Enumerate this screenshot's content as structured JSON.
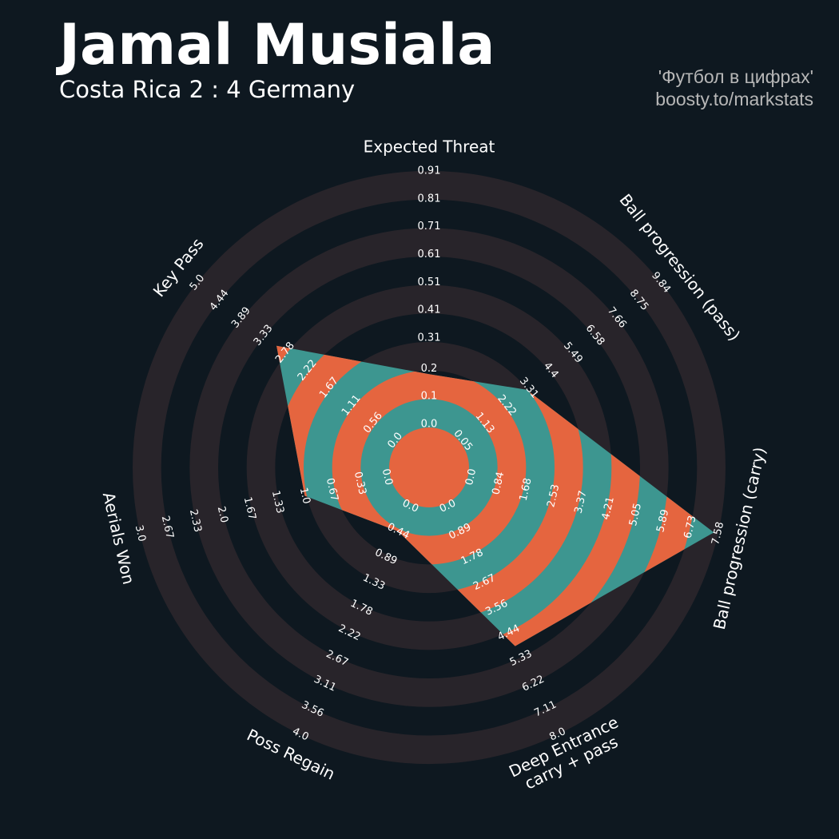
{
  "chart_data": {
    "type": "radar",
    "title": "Jamal Musiala",
    "subtitle": "Costa Rica 2 : 4 Germany",
    "credits": [
      "'Футбол в цифрах'",
      "boosty.to/markstats"
    ],
    "parameters": [
      "Expected Threat",
      "Ball progression (pass)",
      "Ball progression (carry)",
      "Deep Entrance\ncarry + pass",
      "Poss Regain",
      "Aerials Won",
      "Key Pass"
    ],
    "values": [
      0.18,
      3.2,
      7.45,
      4.9,
      0.44,
      1.0,
      3.0
    ],
    "ranges": [
      [
        0,
        0.91
      ],
      [
        0.05,
        9.84
      ],
      [
        0,
        7.58
      ],
      [
        0,
        8
      ],
      [
        0,
        4
      ],
      [
        0,
        3
      ],
      [
        0,
        5
      ]
    ],
    "ticks": [
      [
        {
          "value": 0,
          "label": "0.0"
        },
        0.1,
        0.2,
        0.31,
        0.41,
        0.51,
        0.61,
        0.71,
        0.81,
        0.91
      ],
      [
        0.05,
        1.13,
        2.22,
        3.31,
        4.4,
        5.49,
        6.58,
        7.66,
        8.75,
        9.84
      ],
      [
        {
          "value": 0,
          "label": "0.0"
        },
        0.84,
        1.68,
        2.53,
        3.37,
        4.21,
        5.05,
        5.89,
        6.73,
        7.58
      ],
      [
        {
          "value": 0,
          "label": "0.0"
        },
        0.89,
        1.78,
        2.67,
        3.56,
        4.44,
        5.33,
        6.22,
        7.11,
        {
          "value": 8,
          "label": "8.0"
        }
      ],
      [
        {
          "value": 0,
          "label": "0.0"
        },
        0.44,
        0.89,
        1.33,
        1.78,
        2.22,
        2.67,
        3.11,
        3.56,
        {
          "value": 4,
          "label": "4.0"
        }
      ],
      [
        {
          "value": 0,
          "label": "0.0"
        },
        0.33,
        0.67,
        {
          "value": 1,
          "label": "1.0"
        },
        1.33,
        1.67,
        {
          "value": 2,
          "label": "2.0"
        },
        2.33,
        2.67,
        {
          "value": 3,
          "label": "3.0"
        }
      ],
      [
        {
          "value": 0,
          "label": "0.0"
        },
        0.56,
        1.11,
        1.67,
        2.22,
        2.78,
        3.33,
        3.89,
        4.44,
        {
          "value": 5,
          "label": "5.0"
        }
      ]
    ],
    "color": "#3d9690",
    "alt_color": "#e5653f",
    "ring_color": "#28242a"
  }
}
